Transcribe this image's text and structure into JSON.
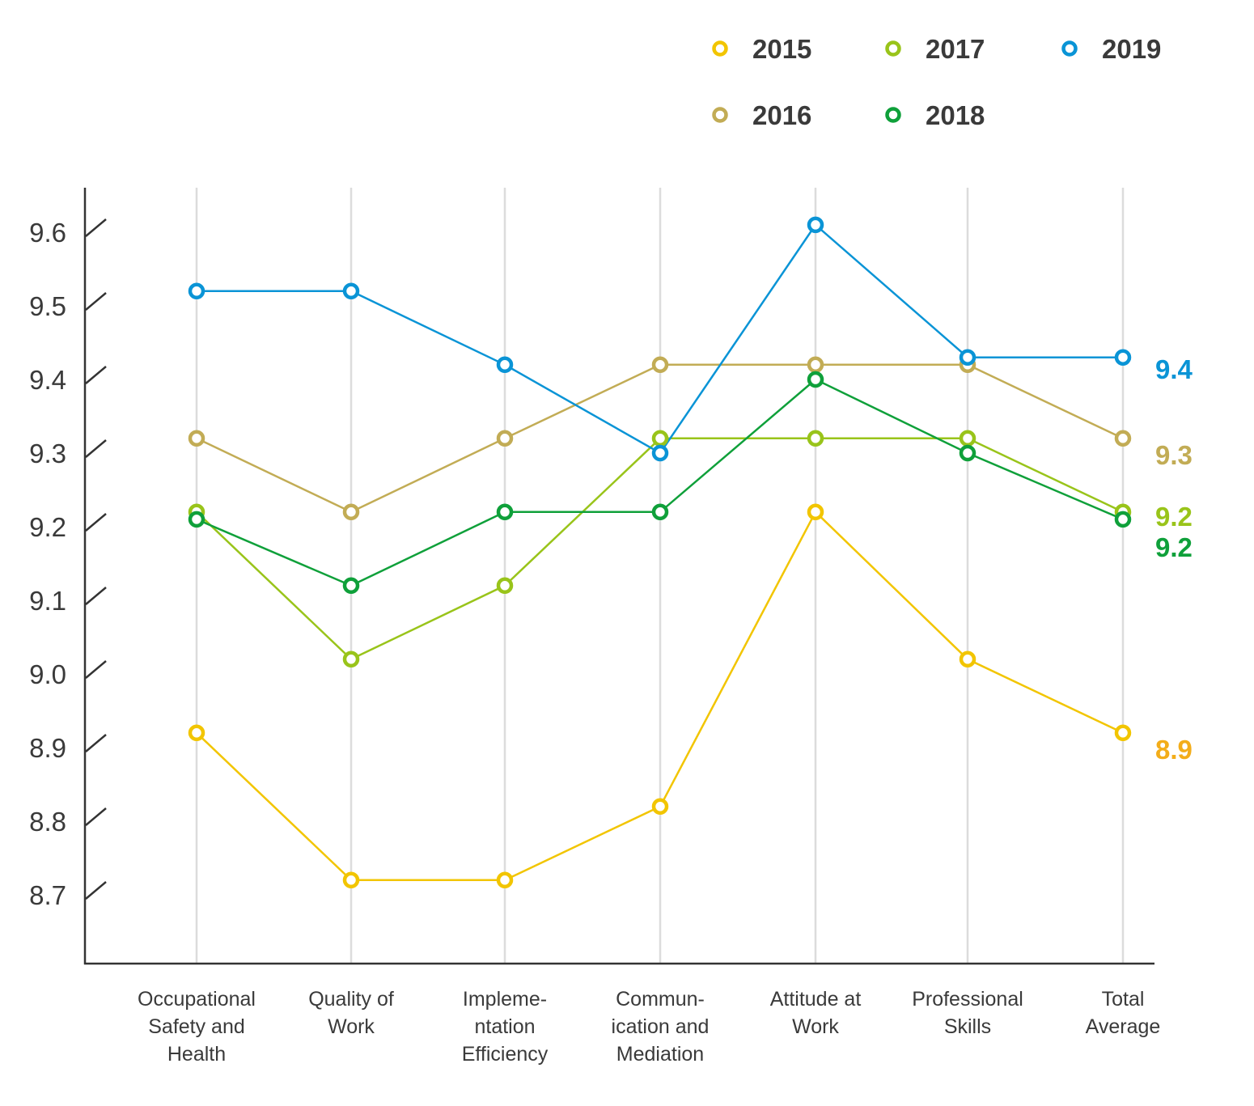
{
  "chart_data": {
    "type": "line",
    "categories": [
      [
        "Occupational",
        "Safety and",
        "Health"
      ],
      [
        "Quality of",
        "Work"
      ],
      [
        "Impleme-",
        "ntation",
        "Efficiency"
      ],
      [
        "Commun-",
        "ication and",
        "Mediation"
      ],
      [
        "Attitude at",
        "Work"
      ],
      [
        "Professional",
        "Skills"
      ],
      [
        "Total",
        "Average"
      ]
    ],
    "highlight_category_color": "#0a94d6",
    "ylim": [
      8.63,
      9.7
    ],
    "yticks": [
      "8.7",
      "8.8",
      "8.9",
      "9.0",
      "9.1",
      "9.2",
      "9.3",
      "9.4",
      "9.5",
      "9.6"
    ],
    "grid": "vertical",
    "legend_position": "top-right",
    "series": [
      {
        "name": "2015",
        "color": "#f2c500",
        "values": [
          8.92,
          8.72,
          8.72,
          8.82,
          9.22,
          9.02,
          8.92
        ],
        "end_label": "8.9",
        "end_label_color": "#f3ad1a"
      },
      {
        "name": "2016",
        "color": "#c2ac55",
        "values": [
          9.32,
          9.22,
          9.32,
          9.42,
          9.42,
          9.42,
          9.32
        ],
        "end_label": "9.3",
        "end_label_color": "#c2ac55"
      },
      {
        "name": "2017",
        "color": "#99c41a",
        "values": [
          9.22,
          9.02,
          9.12,
          9.32,
          9.32,
          9.32,
          9.22
        ],
        "end_label": "9.2",
        "end_label_color": "#99c41a"
      },
      {
        "name": "2018",
        "color": "#0fa03a",
        "values": [
          9.21,
          9.12,
          9.22,
          9.22,
          9.4,
          9.3,
          9.21
        ],
        "end_label": "9.2",
        "end_label_color": "#0fa03a"
      },
      {
        "name": "2019",
        "color": "#0a94d6",
        "values": [
          9.52,
          9.52,
          9.42,
          9.3,
          9.61,
          9.43,
          9.43
        ],
        "end_label": "9.4",
        "end_label_color": "#0a94d6"
      }
    ]
  }
}
